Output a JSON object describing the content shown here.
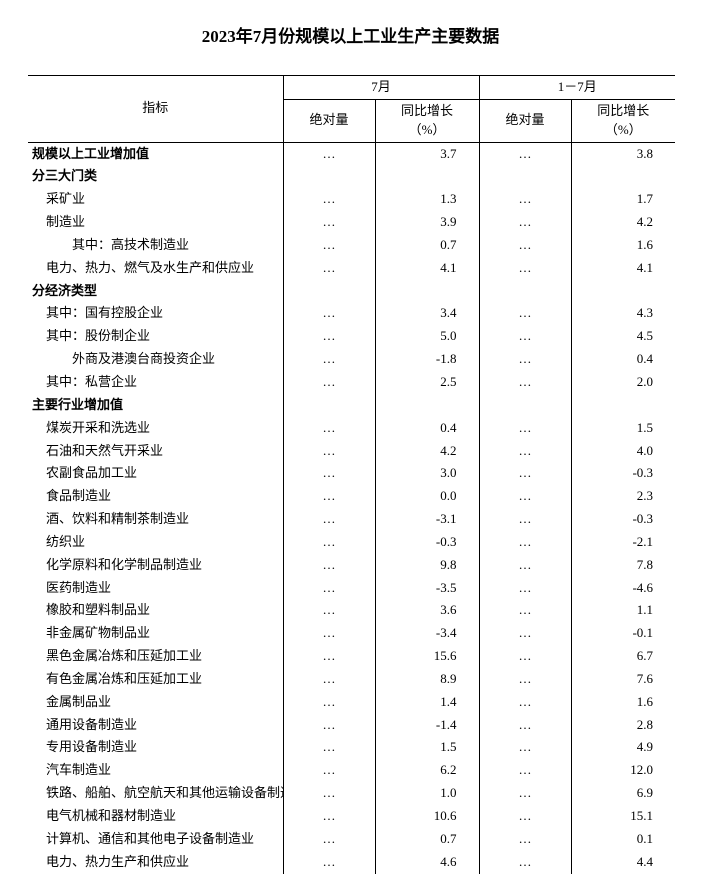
{
  "title": "2023年7月份规模以上工业生产主要数据",
  "header": {
    "indicator": "指标",
    "july": "7月",
    "jan_jul": "1－7月",
    "abs": "绝对量",
    "yoy": "同比增长\n（%）"
  },
  "ellipsis": "…",
  "rows": [
    {
      "label": "规模以上工业增加值",
      "indent": 0,
      "bold": true,
      "jul_abs": "…",
      "jul_yoy": "3.7",
      "jj_abs": "…",
      "jj_yoy": "3.8"
    },
    {
      "label": "分三大门类",
      "indent": 0,
      "bold": true,
      "jul_abs": "",
      "jul_yoy": "",
      "jj_abs": "",
      "jj_yoy": ""
    },
    {
      "label": "采矿业",
      "indent": 1,
      "bold": false,
      "jul_abs": "…",
      "jul_yoy": "1.3",
      "jj_abs": "…",
      "jj_yoy": "1.7"
    },
    {
      "label": "制造业",
      "indent": 1,
      "bold": false,
      "jul_abs": "…",
      "jul_yoy": "3.9",
      "jj_abs": "…",
      "jj_yoy": "4.2"
    },
    {
      "label": "其中：高技术制造业",
      "indent": 2,
      "bold": false,
      "jul_abs": "…",
      "jul_yoy": "0.7",
      "jj_abs": "…",
      "jj_yoy": "1.6"
    },
    {
      "label": "电力、热力、燃气及水生产和供应业",
      "indent": 1,
      "bold": false,
      "jul_abs": "…",
      "jul_yoy": "4.1",
      "jj_abs": "…",
      "jj_yoy": "4.1"
    },
    {
      "label": "分经济类型",
      "indent": 0,
      "bold": true,
      "jul_abs": "",
      "jul_yoy": "",
      "jj_abs": "",
      "jj_yoy": ""
    },
    {
      "label": "其中：国有控股企业",
      "indent": 1,
      "bold": false,
      "jul_abs": "…",
      "jul_yoy": "3.4",
      "jj_abs": "…",
      "jj_yoy": "4.3"
    },
    {
      "label": "其中：股份制企业",
      "indent": 1,
      "bold": false,
      "jul_abs": "…",
      "jul_yoy": "5.0",
      "jj_abs": "…",
      "jj_yoy": "4.5"
    },
    {
      "label": "外商及港澳台商投资企业",
      "indent": 2,
      "bold": false,
      "jul_abs": "…",
      "jul_yoy": "-1.8",
      "jj_abs": "…",
      "jj_yoy": "0.4"
    },
    {
      "label": "其中：私营企业",
      "indent": 1,
      "bold": false,
      "jul_abs": "…",
      "jul_yoy": "2.5",
      "jj_abs": "…",
      "jj_yoy": "2.0"
    },
    {
      "label": "主要行业增加值",
      "indent": 0,
      "bold": true,
      "jul_abs": "",
      "jul_yoy": "",
      "jj_abs": "",
      "jj_yoy": ""
    },
    {
      "label": "煤炭开采和洗选业",
      "indent": 1,
      "bold": false,
      "jul_abs": "…",
      "jul_yoy": "0.4",
      "jj_abs": "…",
      "jj_yoy": "1.5"
    },
    {
      "label": "石油和天然气开采业",
      "indent": 1,
      "bold": false,
      "jul_abs": "…",
      "jul_yoy": "4.2",
      "jj_abs": "…",
      "jj_yoy": "4.0"
    },
    {
      "label": "农副食品加工业",
      "indent": 1,
      "bold": false,
      "jul_abs": "…",
      "jul_yoy": "3.0",
      "jj_abs": "…",
      "jj_yoy": "-0.3"
    },
    {
      "label": "食品制造业",
      "indent": 1,
      "bold": false,
      "jul_abs": "…",
      "jul_yoy": "0.0",
      "jj_abs": "…",
      "jj_yoy": "2.3"
    },
    {
      "label": "酒、饮料和精制茶制造业",
      "indent": 1,
      "bold": false,
      "jul_abs": "…",
      "jul_yoy": "-3.1",
      "jj_abs": "…",
      "jj_yoy": "-0.3"
    },
    {
      "label": "纺织业",
      "indent": 1,
      "bold": false,
      "jul_abs": "…",
      "jul_yoy": "-0.3",
      "jj_abs": "…",
      "jj_yoy": "-2.1"
    },
    {
      "label": "化学原料和化学制品制造业",
      "indent": 1,
      "bold": false,
      "jul_abs": "…",
      "jul_yoy": "9.8",
      "jj_abs": "…",
      "jj_yoy": "7.8"
    },
    {
      "label": "医药制造业",
      "indent": 1,
      "bold": false,
      "jul_abs": "…",
      "jul_yoy": "-3.5",
      "jj_abs": "…",
      "jj_yoy": "-4.6"
    },
    {
      "label": "橡胶和塑料制品业",
      "indent": 1,
      "bold": false,
      "jul_abs": "…",
      "jul_yoy": "3.6",
      "jj_abs": "…",
      "jj_yoy": "1.1"
    },
    {
      "label": "非金属矿物制品业",
      "indent": 1,
      "bold": false,
      "jul_abs": "…",
      "jul_yoy": "-3.4",
      "jj_abs": "…",
      "jj_yoy": "-0.1"
    },
    {
      "label": "黑色金属冶炼和压延加工业",
      "indent": 1,
      "bold": false,
      "jul_abs": "…",
      "jul_yoy": "15.6",
      "jj_abs": "…",
      "jj_yoy": "6.7"
    },
    {
      "label": "有色金属冶炼和压延加工业",
      "indent": 1,
      "bold": false,
      "jul_abs": "…",
      "jul_yoy": "8.9",
      "jj_abs": "…",
      "jj_yoy": "7.6"
    },
    {
      "label": "金属制品业",
      "indent": 1,
      "bold": false,
      "jul_abs": "…",
      "jul_yoy": "1.4",
      "jj_abs": "…",
      "jj_yoy": "1.6"
    },
    {
      "label": "通用设备制造业",
      "indent": 1,
      "bold": false,
      "jul_abs": "…",
      "jul_yoy": "-1.4",
      "jj_abs": "…",
      "jj_yoy": "2.8"
    },
    {
      "label": "专用设备制造业",
      "indent": 1,
      "bold": false,
      "jul_abs": "…",
      "jul_yoy": "1.5",
      "jj_abs": "…",
      "jj_yoy": "4.9"
    },
    {
      "label": "汽车制造业",
      "indent": 1,
      "bold": false,
      "jul_abs": "…",
      "jul_yoy": "6.2",
      "jj_abs": "…",
      "jj_yoy": "12.0"
    },
    {
      "label": "铁路、船舶、航空航天和其他运输设备制造业",
      "indent": 1,
      "bold": false,
      "jul_abs": "…",
      "jul_yoy": "1.0",
      "jj_abs": "…",
      "jj_yoy": "6.9"
    },
    {
      "label": "电气机械和器材制造业",
      "indent": 1,
      "bold": false,
      "jul_abs": "…",
      "jul_yoy": "10.6",
      "jj_abs": "…",
      "jj_yoy": "15.1"
    },
    {
      "label": "计算机、通信和其他电子设备制造业",
      "indent": 1,
      "bold": false,
      "jul_abs": "…",
      "jul_yoy": "0.7",
      "jj_abs": "…",
      "jj_yoy": "0.1"
    },
    {
      "label": "电力、热力生产和供应业",
      "indent": 1,
      "bold": false,
      "jul_abs": "…",
      "jul_yoy": "4.6",
      "jj_abs": "…",
      "jj_yoy": "4.4"
    }
  ]
}
